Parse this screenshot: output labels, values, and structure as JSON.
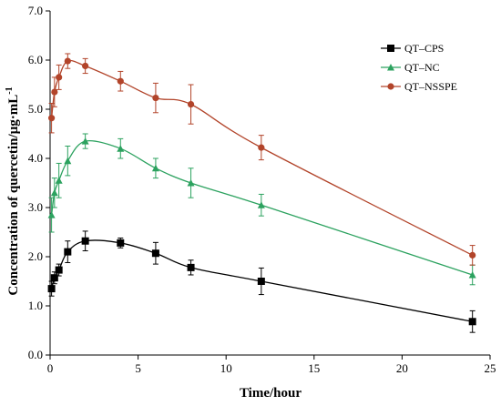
{
  "chart_data": {
    "type": "line",
    "xlabel": "Time/hour",
    "ylabel": "Concentration of quercetin/µg·mL",
    "ylabel_sup": "-1",
    "xlim": [
      0,
      25
    ],
    "ylim": [
      0,
      7
    ],
    "x_ticks": [
      0,
      5,
      10,
      15,
      20,
      25
    ],
    "y_ticks": [
      0.0,
      1.0,
      2.0,
      3.0,
      4.0,
      5.0,
      6.0,
      7.0
    ],
    "x_tick_labels": [
      "0",
      "5",
      "10",
      "15",
      "20",
      "25"
    ],
    "y_tick_labels": [
      "0.0",
      "1.0",
      "2.0",
      "3.0",
      "4.0",
      "5.0",
      "6.0",
      "7.0"
    ],
    "grid": false,
    "legend_position": "top-right",
    "x": [
      0.083,
      0.25,
      0.5,
      1,
      2,
      4,
      6,
      8,
      12,
      24
    ],
    "series": [
      {
        "name": "QT–CPS",
        "color": "#000000",
        "marker": "square",
        "values": [
          1.35,
          1.57,
          1.73,
          2.1,
          2.32,
          2.28,
          2.07,
          1.78,
          1.5,
          0.68
        ],
        "errors": [
          0.15,
          0.12,
          0.12,
          0.22,
          0.2,
          0.1,
          0.22,
          0.15,
          0.27,
          0.22
        ]
      },
      {
        "name": "QT–NC",
        "color": "#2ca25f",
        "marker": "triangle",
        "values": [
          2.85,
          3.3,
          3.55,
          3.95,
          4.35,
          4.2,
          3.8,
          3.5,
          3.05,
          1.63
        ],
        "errors": [
          0.35,
          0.3,
          0.35,
          0.3,
          0.15,
          0.2,
          0.2,
          0.3,
          0.22,
          0.2
        ]
      },
      {
        "name": "QT–NSSPE",
        "color": "#b2442a",
        "marker": "circle",
        "values": [
          4.82,
          5.35,
          5.65,
          5.98,
          5.88,
          5.57,
          5.23,
          5.1,
          4.22,
          2.03
        ],
        "errors": [
          0.3,
          0.3,
          0.25,
          0.15,
          0.15,
          0.2,
          0.3,
          0.4,
          0.25,
          0.2
        ]
      }
    ]
  }
}
